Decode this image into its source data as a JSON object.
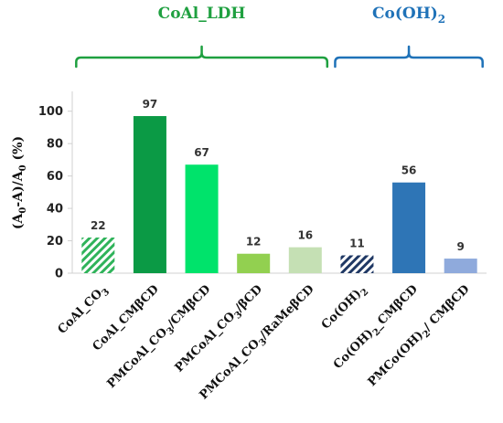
{
  "chart_data": {
    "type": "bar",
    "title": "",
    "xlabel": "",
    "ylabel": "(A0-A)/A0 (%)",
    "ylim": [
      0,
      110
    ],
    "yticks": [
      0,
      20,
      40,
      60,
      80,
      100
    ],
    "grid": false,
    "categories": [
      "CoAl_CO3",
      "CoAl_CMβCD",
      "PMCoAl_CO3/CMβCD",
      "PMCoAl_CO3/βCD",
      "PMCoAl_CO3/RaMeβCD",
      "Co(OH)2",
      "Co(OH)2_CMβCD",
      "PMCo(OH)2/ CMβCD"
    ],
    "values": [
      22,
      97,
      67,
      12,
      16,
      11,
      56,
      9
    ],
    "data_labels": [
      "22",
      "97",
      "67",
      "12",
      "16",
      "11",
      "56",
      "9"
    ],
    "bar_colors": [
      "#2fb35a",
      "#0b9a45",
      "#00e36b",
      "#92d050",
      "#c5e0b4",
      "#1f3864",
      "#2e75b6",
      "#8faadc"
    ],
    "hatched": [
      true,
      false,
      false,
      false,
      false,
      true,
      false,
      false
    ],
    "groups": [
      {
        "label": "CoAl_LDH",
        "start": 0,
        "end": 4,
        "color": "#1fa040"
      },
      {
        "label": "Co(OH)2",
        "start": 5,
        "end": 7,
        "color": "#1f72b8"
      }
    ]
  }
}
